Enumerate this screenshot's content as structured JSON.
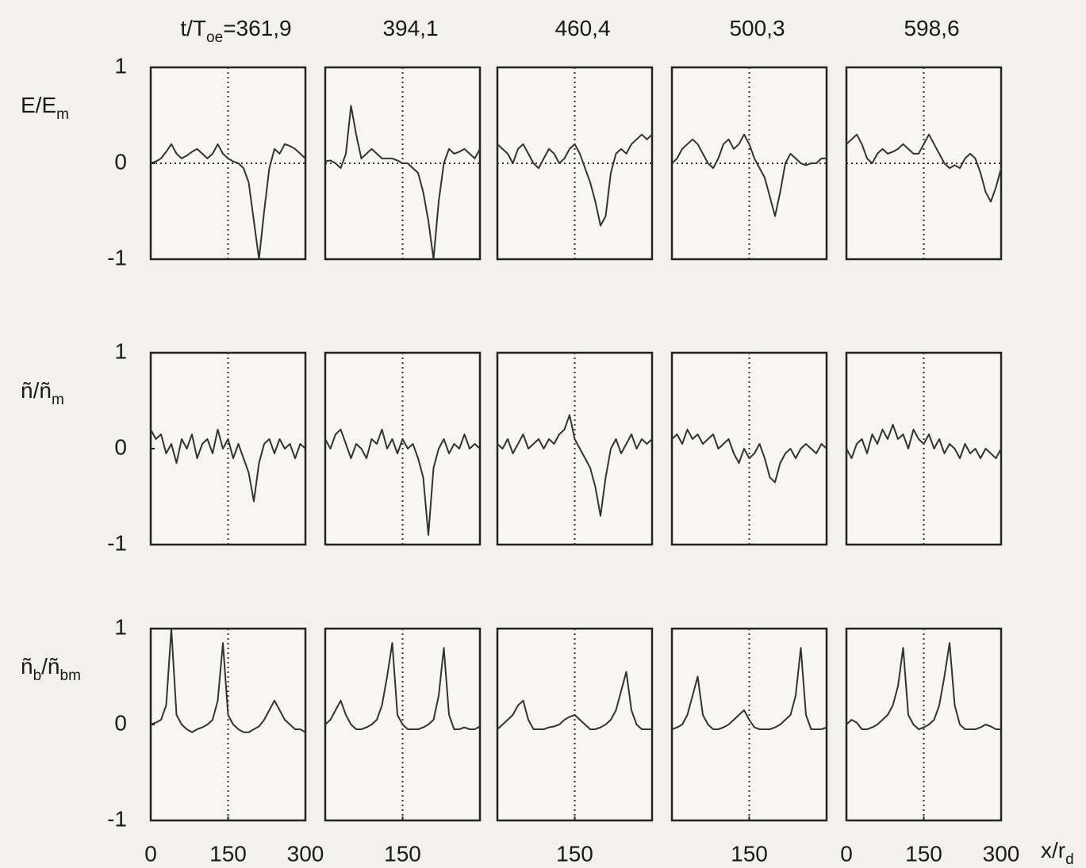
{
  "chart_data": [
    {
      "type": "line",
      "title": [
        "t/T",
        "oe",
        "=361,9"
      ],
      "ylabel": [
        "E/E",
        "m"
      ],
      "color": "#333333",
      "xlim": [
        0,
        300
      ],
      "ylim": [
        -1,
        1
      ],
      "yticks": [
        -1,
        0,
        1
      ],
      "xguides": [
        150
      ],
      "yguides": [
        0
      ],
      "x": [
        0,
        10,
        20,
        30,
        40,
        50,
        60,
        70,
        80,
        90,
        100,
        110,
        120,
        130,
        140,
        150,
        160,
        170,
        180,
        190,
        200,
        210,
        220,
        230,
        240,
        250,
        260,
        270,
        280,
        290,
        300
      ],
      "values": [
        0,
        0.02,
        0.05,
        0.12,
        0.2,
        0.1,
        0.05,
        0.08,
        0.12,
        0.15,
        0.1,
        0.05,
        0.1,
        0.2,
        0.1,
        0.05,
        0.02,
        0.0,
        -0.05,
        -0.2,
        -0.6,
        -1.0,
        -0.5,
        -0.05,
        0.15,
        0.1,
        0.2,
        0.18,
        0.15,
        0.1,
        0.05
      ]
    },
    {
      "type": "line",
      "title": [
        "394,1"
      ],
      "color": "#333333",
      "xlim": [
        0,
        300
      ],
      "ylim": [
        -1,
        1
      ],
      "xguides": [
        150
      ],
      "yguides": [
        0
      ],
      "x": [
        0,
        10,
        20,
        30,
        40,
        50,
        60,
        70,
        80,
        90,
        100,
        110,
        120,
        130,
        140,
        150,
        160,
        170,
        180,
        190,
        200,
        210,
        220,
        230,
        240,
        250,
        260,
        270,
        280,
        290,
        300
      ],
      "values": [
        0.02,
        0.03,
        0.0,
        -0.05,
        0.1,
        0.6,
        0.3,
        0.05,
        0.1,
        0.15,
        0.1,
        0.05,
        0.05,
        0.05,
        0.03,
        0.0,
        0.0,
        -0.05,
        -0.1,
        -0.3,
        -0.6,
        -1.0,
        -0.4,
        0.0,
        0.15,
        0.1,
        0.12,
        0.15,
        0.1,
        0.05,
        0.15
      ]
    },
    {
      "type": "line",
      "title": [
        "460,4"
      ],
      "color": "#333333",
      "xlim": [
        0,
        300
      ],
      "ylim": [
        -1,
        1
      ],
      "xguides": [
        150
      ],
      "yguides": [
        0
      ],
      "x": [
        0,
        10,
        20,
        30,
        40,
        50,
        60,
        70,
        80,
        90,
        100,
        110,
        120,
        130,
        140,
        150,
        160,
        170,
        180,
        190,
        200,
        210,
        220,
        230,
        240,
        250,
        260,
        270,
        280,
        290,
        300
      ],
      "values": [
        0.2,
        0.15,
        0.1,
        0.0,
        0.15,
        0.2,
        0.1,
        0.0,
        -0.05,
        0.05,
        0.15,
        0.1,
        0.0,
        0.05,
        0.15,
        0.2,
        0.1,
        -0.05,
        -0.2,
        -0.4,
        -0.65,
        -0.55,
        -0.1,
        0.1,
        0.15,
        0.1,
        0.2,
        0.25,
        0.3,
        0.25,
        0.3
      ]
    },
    {
      "type": "line",
      "title": [
        "500,3"
      ],
      "color": "#333333",
      "xlim": [
        0,
        300
      ],
      "ylim": [
        -1,
        1
      ],
      "xguides": [
        150
      ],
      "yguides": [
        0
      ],
      "x": [
        0,
        10,
        20,
        30,
        40,
        50,
        60,
        70,
        80,
        90,
        100,
        110,
        120,
        130,
        140,
        150,
        160,
        170,
        180,
        190,
        200,
        210,
        220,
        230,
        240,
        250,
        260,
        270,
        280,
        290,
        300
      ],
      "values": [
        0.0,
        0.05,
        0.15,
        0.2,
        0.25,
        0.2,
        0.1,
        0.0,
        -0.05,
        0.05,
        0.2,
        0.25,
        0.15,
        0.2,
        0.3,
        0.2,
        0.05,
        -0.05,
        -0.15,
        -0.35,
        -0.55,
        -0.3,
        0.0,
        0.1,
        0.05,
        0.0,
        -0.02,
        0.0,
        0.0,
        0.05,
        0.05
      ]
    },
    {
      "type": "line",
      "title": [
        "598,6"
      ],
      "color": "#333333",
      "xlim": [
        0,
        300
      ],
      "ylim": [
        -1,
        1
      ],
      "xguides": [
        150
      ],
      "yguides": [
        0
      ],
      "x": [
        0,
        10,
        20,
        30,
        40,
        50,
        60,
        70,
        80,
        90,
        100,
        110,
        120,
        130,
        140,
        150,
        160,
        170,
        180,
        190,
        200,
        210,
        220,
        230,
        240,
        250,
        260,
        270,
        280,
        290,
        300
      ],
      "values": [
        0.2,
        0.25,
        0.3,
        0.2,
        0.05,
        0.0,
        0.1,
        0.15,
        0.1,
        0.12,
        0.15,
        0.2,
        0.15,
        0.1,
        0.1,
        0.2,
        0.3,
        0.2,
        0.1,
        0.0,
        -0.05,
        -0.02,
        -0.05,
        0.05,
        0.1,
        0.05,
        -0.1,
        -0.3,
        -0.4,
        -0.25,
        -0.05
      ]
    },
    {
      "type": "line",
      "ylabel": [
        "ñ/ñ",
        "m"
      ],
      "color": "#333333",
      "xlim": [
        0,
        300
      ],
      "ylim": [
        -1,
        1
      ],
      "yticks": [
        -1,
        0,
        1
      ],
      "xguides": [
        150
      ],
      "x": [
        0,
        10,
        20,
        30,
        40,
        50,
        60,
        70,
        80,
        90,
        100,
        110,
        120,
        130,
        140,
        150,
        160,
        170,
        180,
        190,
        200,
        210,
        220,
        230,
        240,
        250,
        260,
        270,
        280,
        290,
        300
      ],
      "values": [
        0.2,
        0.1,
        0.15,
        -0.05,
        0.05,
        -0.15,
        0.1,
        0.0,
        0.15,
        -0.1,
        0.05,
        0.1,
        -0.05,
        0.2,
        0.0,
        0.1,
        -0.1,
        0.05,
        -0.1,
        -0.25,
        -0.55,
        -0.15,
        0.05,
        0.1,
        -0.05,
        0.1,
        0.0,
        0.05,
        -0.1,
        0.05,
        0.0
      ]
    },
    {
      "type": "line",
      "color": "#333333",
      "xlim": [
        0,
        300
      ],
      "ylim": [
        -1,
        1
      ],
      "xguides": [
        150
      ],
      "x": [
        0,
        10,
        20,
        30,
        40,
        50,
        60,
        70,
        80,
        90,
        100,
        110,
        120,
        130,
        140,
        150,
        160,
        170,
        180,
        190,
        200,
        210,
        220,
        230,
        240,
        250,
        260,
        270,
        280,
        290,
        300
      ],
      "values": [
        0.1,
        0.0,
        0.15,
        0.2,
        0.05,
        -0.1,
        0.05,
        0.0,
        -0.1,
        0.1,
        0.05,
        0.2,
        0.0,
        0.1,
        -0.05,
        0.1,
        0.0,
        0.05,
        -0.1,
        -0.3,
        -0.9,
        -0.2,
        0.0,
        0.1,
        -0.05,
        0.05,
        0.0,
        0.15,
        0.0,
        0.05,
        0.0
      ]
    },
    {
      "type": "line",
      "color": "#333333",
      "xlim": [
        0,
        300
      ],
      "ylim": [
        -1,
        1
      ],
      "xguides": [
        150
      ],
      "x": [
        0,
        10,
        20,
        30,
        40,
        50,
        60,
        70,
        80,
        90,
        100,
        110,
        120,
        130,
        140,
        150,
        160,
        170,
        180,
        190,
        200,
        210,
        220,
        230,
        240,
        250,
        260,
        270,
        280,
        290,
        300
      ],
      "values": [
        0.05,
        0.0,
        0.1,
        -0.05,
        0.05,
        0.15,
        0.0,
        0.05,
        0.1,
        0.0,
        0.1,
        0.05,
        0.15,
        0.2,
        0.35,
        0.1,
        0.0,
        -0.1,
        -0.2,
        -0.4,
        -0.7,
        -0.3,
        0.0,
        0.1,
        -0.05,
        0.05,
        0.15,
        0.0,
        0.1,
        0.05,
        0.1
      ]
    },
    {
      "type": "line",
      "color": "#333333",
      "xlim": [
        0,
        300
      ],
      "ylim": [
        -1,
        1
      ],
      "xguides": [
        150
      ],
      "x": [
        0,
        10,
        20,
        30,
        40,
        50,
        60,
        70,
        80,
        90,
        100,
        110,
        120,
        130,
        140,
        150,
        160,
        170,
        180,
        190,
        200,
        210,
        220,
        230,
        240,
        250,
        260,
        270,
        280,
        290,
        300
      ],
      "values": [
        0.1,
        0.15,
        0.05,
        0.2,
        0.1,
        0.15,
        0.05,
        0.1,
        0.15,
        0.0,
        0.05,
        0.1,
        -0.05,
        -0.15,
        0.0,
        -0.1,
        -0.05,
        0.05,
        -0.1,
        -0.3,
        -0.35,
        -0.15,
        -0.05,
        0.0,
        -0.1,
        0.0,
        0.05,
        0.0,
        -0.05,
        0.05,
        0.0
      ]
    },
    {
      "type": "line",
      "color": "#333333",
      "xlim": [
        0,
        300
      ],
      "ylim": [
        -1,
        1
      ],
      "xguides": [
        150
      ],
      "x": [
        0,
        10,
        20,
        30,
        40,
        50,
        60,
        70,
        80,
        90,
        100,
        110,
        120,
        130,
        140,
        150,
        160,
        170,
        180,
        190,
        200,
        210,
        220,
        230,
        240,
        250,
        260,
        270,
        280,
        290,
        300
      ],
      "values": [
        0.0,
        -0.1,
        0.05,
        0.1,
        -0.05,
        0.15,
        0.05,
        0.2,
        0.1,
        0.25,
        0.1,
        0.15,
        0.0,
        0.2,
        0.1,
        0.05,
        0.15,
        0.0,
        0.1,
        -0.05,
        0.05,
        0.0,
        -0.1,
        0.05,
        -0.05,
        0.0,
        -0.1,
        0.0,
        -0.05,
        -0.1,
        0.0
      ]
    },
    {
      "type": "line",
      "ylabel": [
        "ñ",
        "b",
        "/ñ",
        "bm"
      ],
      "color": "#333333",
      "xlim": [
        0,
        300
      ],
      "ylim": [
        -1,
        1
      ],
      "yticks": [
        -1,
        0,
        1
      ],
      "xticks": [
        0,
        150,
        300
      ],
      "xguides": [
        150
      ],
      "x": [
        0,
        10,
        20,
        30,
        40,
        50,
        60,
        70,
        80,
        90,
        100,
        110,
        120,
        130,
        140,
        150,
        160,
        170,
        180,
        190,
        200,
        210,
        220,
        230,
        240,
        250,
        260,
        270,
        280,
        290,
        300
      ],
      "values": [
        0.0,
        0.02,
        0.05,
        0.2,
        1.0,
        0.1,
        0.0,
        -0.05,
        -0.08,
        -0.05,
        -0.03,
        0.0,
        0.05,
        0.25,
        0.85,
        0.1,
        0.0,
        -0.05,
        -0.08,
        -0.08,
        -0.05,
        -0.02,
        0.05,
        0.15,
        0.25,
        0.15,
        0.05,
        0.0,
        -0.05,
        -0.05,
        -0.08
      ]
    },
    {
      "type": "line",
      "color": "#333333",
      "xlim": [
        0,
        300
      ],
      "ylim": [
        -1,
        1
      ],
      "xticks": [
        150
      ],
      "xguides": [
        150
      ],
      "x": [
        0,
        10,
        20,
        30,
        40,
        50,
        60,
        70,
        80,
        90,
        100,
        110,
        120,
        130,
        140,
        150,
        160,
        170,
        180,
        190,
        200,
        210,
        220,
        230,
        240,
        250,
        260,
        270,
        280,
        290,
        300
      ],
      "values": [
        0.0,
        0.05,
        0.15,
        0.25,
        0.1,
        0.0,
        -0.05,
        -0.05,
        -0.03,
        0.0,
        0.05,
        0.2,
        0.5,
        0.85,
        0.1,
        0.0,
        -0.05,
        -0.05,
        -0.05,
        -0.03,
        0.0,
        0.05,
        0.3,
        0.8,
        0.1,
        -0.05,
        -0.05,
        -0.03,
        -0.05,
        -0.05,
        -0.02
      ]
    },
    {
      "type": "line",
      "color": "#333333",
      "xlim": [
        0,
        300
      ],
      "ylim": [
        -1,
        1
      ],
      "xticks": [
        150
      ],
      "xguides": [
        150
      ],
      "x": [
        0,
        10,
        20,
        30,
        40,
        50,
        60,
        70,
        80,
        90,
        100,
        110,
        120,
        130,
        140,
        150,
        160,
        170,
        180,
        190,
        200,
        210,
        220,
        230,
        240,
        250,
        260,
        270,
        280,
        290,
        300
      ],
      "values": [
        -0.05,
        0.0,
        0.05,
        0.1,
        0.2,
        0.25,
        0.05,
        -0.05,
        -0.05,
        -0.05,
        -0.03,
        -0.02,
        0.0,
        0.05,
        0.08,
        0.1,
        0.05,
        0.0,
        -0.05,
        -0.05,
        -0.03,
        0.0,
        0.05,
        0.15,
        0.35,
        0.55,
        0.15,
        0.0,
        -0.05,
        -0.05,
        -0.05
      ]
    },
    {
      "type": "line",
      "color": "#333333",
      "xlim": [
        0,
        300
      ],
      "ylim": [
        -1,
        1
      ],
      "xticks": [
        150
      ],
      "xguides": [
        150
      ],
      "x": [
        0,
        10,
        20,
        30,
        40,
        50,
        60,
        70,
        80,
        90,
        100,
        110,
        120,
        130,
        140,
        150,
        160,
        170,
        180,
        190,
        200,
        210,
        220,
        230,
        240,
        250,
        260,
        270,
        280,
        290,
        300
      ],
      "values": [
        -0.05,
        -0.03,
        0.0,
        0.1,
        0.3,
        0.5,
        0.1,
        0.0,
        -0.05,
        -0.05,
        -0.03,
        0.0,
        0.05,
        0.1,
        0.15,
        0.05,
        -0.03,
        -0.05,
        -0.05,
        -0.05,
        -0.03,
        0.0,
        0.05,
        0.1,
        0.3,
        0.8,
        0.1,
        -0.05,
        -0.05,
        -0.05,
        -0.03
      ]
    },
    {
      "type": "line",
      "xlabel": [
        "x/r",
        "d"
      ],
      "color": "#333333",
      "xlim": [
        0,
        300
      ],
      "ylim": [
        -1,
        1
      ],
      "xticks": [
        0,
        150,
        300
      ],
      "xguides": [
        150
      ],
      "x": [
        0,
        10,
        20,
        30,
        40,
        50,
        60,
        70,
        80,
        90,
        100,
        110,
        120,
        130,
        140,
        150,
        160,
        170,
        180,
        190,
        200,
        210,
        220,
        230,
        240,
        250,
        260,
        270,
        280,
        290,
        300
      ],
      "values": [
        0.0,
        0.05,
        0.02,
        -0.05,
        -0.05,
        -0.03,
        0.0,
        0.05,
        0.1,
        0.2,
        0.4,
        0.8,
        0.1,
        0.0,
        -0.05,
        -0.03,
        0.0,
        0.05,
        0.2,
        0.5,
        0.85,
        0.2,
        0.0,
        -0.05,
        -0.05,
        -0.05,
        -0.03,
        0.0,
        -0.02,
        -0.05,
        -0.05
      ]
    }
  ]
}
